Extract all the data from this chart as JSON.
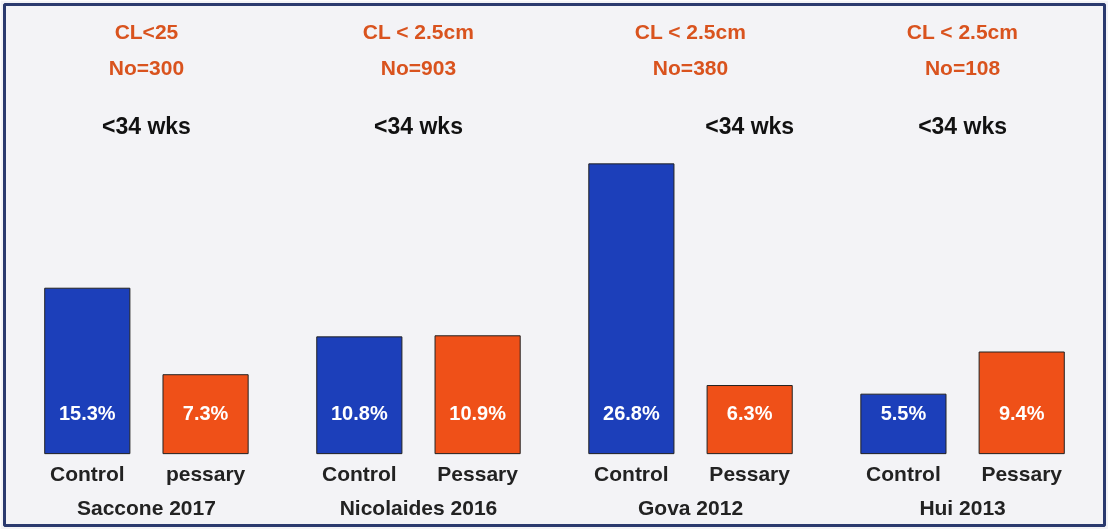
{
  "chart_data": {
    "type": "bar",
    "categories": [
      "Control",
      "pessary",
      "Control",
      "Pessary",
      "Control",
      "Pessary",
      "Control",
      "Pessary"
    ],
    "values": [
      15.3,
      7.3,
      10.8,
      10.9,
      26.8,
      6.3,
      5.5,
      9.4
    ],
    "value_labels": [
      "15.3%",
      "7.3%",
      "10.8%",
      "10.9%",
      "26.8%",
      "6.3%",
      "5.5%",
      "9.4%"
    ],
    "colors": [
      "#1c3fba",
      "#ef5018",
      "#1c3fba",
      "#ef5018",
      "#1c3fba",
      "#ef5018",
      "#1c3fba",
      "#ef5018"
    ],
    "annotations": [
      "CL<25",
      "No=300",
      "<34 wks",
      "Saccone 2017",
      "CL < 2.5cm",
      "No=903",
      "<34 wks",
      "Nicolaides 2016",
      "CL < 2.5cm",
      "No=380",
      "<34 wks",
      "Gova 2012",
      "CL < 2.5cm",
      "No=108",
      "<34 wks",
      "Hui 2013"
    ],
    "grid": false
  }
}
